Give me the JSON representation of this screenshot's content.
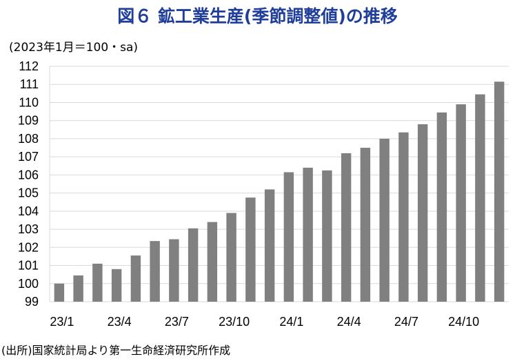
{
  "header": {
    "title": "図６ 鉱工業生産(季節調整値)の推移",
    "unit_note": "(2023年1月＝100・sa)",
    "source": "(出所)国家統計局より第一生命経済研究所作成"
  },
  "colors": {
    "bar": "#808080",
    "grid": "#d9d9d9",
    "title": "#1f3d9a"
  },
  "chart_data": {
    "type": "bar",
    "categories": [
      "23/1",
      "23/2",
      "23/3",
      "23/4",
      "23/5",
      "23/6",
      "23/7",
      "23/8",
      "23/9",
      "23/10",
      "23/11",
      "23/12",
      "24/1",
      "24/2",
      "24/3",
      "24/4",
      "24/5",
      "24/6",
      "24/7",
      "24/8",
      "24/9",
      "24/10",
      "24/11",
      "24/12"
    ],
    "x_tick_labels": [
      "23/1",
      "23/4",
      "23/7",
      "23/10",
      "24/1",
      "24/4",
      "24/7",
      "24/10"
    ],
    "x_tick_indices": [
      0,
      3,
      6,
      9,
      12,
      15,
      18,
      21
    ],
    "values": [
      100.0,
      100.45,
      101.1,
      100.8,
      101.55,
      102.35,
      102.45,
      103.05,
      103.4,
      103.9,
      104.75,
      105.2,
      106.15,
      106.4,
      106.25,
      107.2,
      107.5,
      108.0,
      108.35,
      108.8,
      109.45,
      109.9,
      110.45,
      111.15
    ],
    "ylim": [
      99,
      112
    ],
    "y_ticks": [
      "99",
      "100",
      "101",
      "102",
      "103",
      "104",
      "105",
      "106",
      "107",
      "108",
      "109",
      "110",
      "111",
      "112"
    ],
    "grid": true
  }
}
